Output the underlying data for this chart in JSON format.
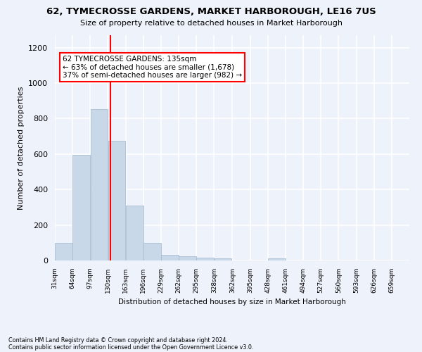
{
  "title": "62, TYMECROSSE GARDENS, MARKET HARBOROUGH, LE16 7US",
  "subtitle": "Size of property relative to detached houses in Market Harborough",
  "xlabel": "Distribution of detached houses by size in Market Harborough",
  "ylabel": "Number of detached properties",
  "footer_line1": "Contains HM Land Registry data © Crown copyright and database right 2024.",
  "footer_line2": "Contains public sector information licensed under the Open Government Licence v3.0.",
  "annotation_line1": "62 TYMECROSSE GARDENS: 135sqm",
  "annotation_line2": "← 63% of detached houses are smaller (1,678)",
  "annotation_line3": "37% of semi-detached houses are larger (982) →",
  "bar_edges": [
    31,
    64,
    97,
    130,
    163,
    196,
    229,
    262,
    295,
    328,
    362,
    395,
    428,
    461,
    494,
    527,
    560,
    593,
    626,
    659,
    692
  ],
  "bar_heights": [
    100,
    595,
    852,
    675,
    308,
    100,
    30,
    22,
    15,
    10,
    0,
    0,
    13,
    0,
    0,
    0,
    0,
    0,
    0,
    0
  ],
  "bar_color": "#c8d8e8",
  "bar_edge_color": "#a0b8cc",
  "vline_x": 135,
  "vline_color": "red",
  "ylim": [
    0,
    1270
  ],
  "background_color": "#eef2fb",
  "grid_color": "white",
  "annotation_box_color": "white",
  "annotation_box_edge": "red"
}
